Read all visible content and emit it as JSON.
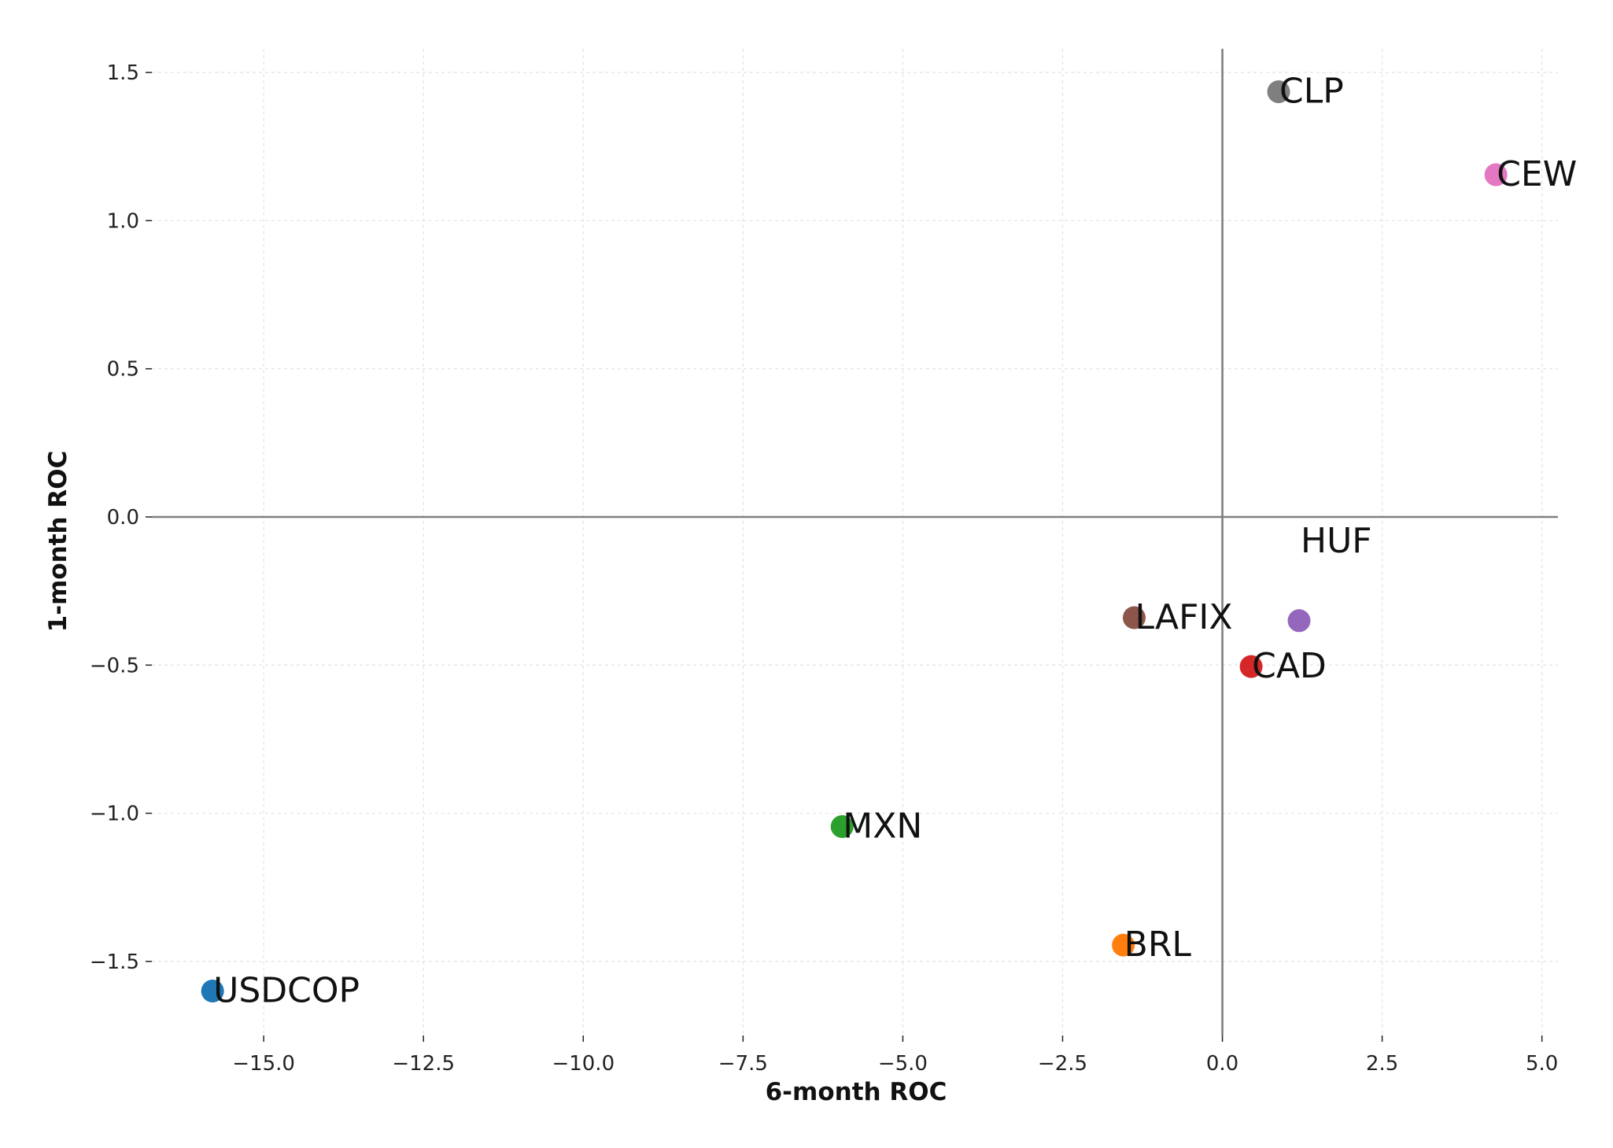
{
  "chart_data": {
    "type": "scatter",
    "xlabel": "6-month ROC",
    "ylabel": "1-month ROC",
    "xlim": [
      -16.75,
      5.25
    ],
    "ylim": [
      -1.75,
      1.58
    ],
    "xticks": [
      -15.0,
      -12.5,
      -10.0,
      -7.5,
      -5.0,
      -2.5,
      0.0,
      2.5,
      5.0
    ],
    "xtick_labels": [
      "−15.0",
      "−12.5",
      "−10.0",
      "−7.5",
      "−5.0",
      "−2.5",
      "0.0",
      "2.5",
      "5.0"
    ],
    "yticks": [
      1.5,
      1.0,
      0.5,
      0.0,
      -0.5,
      -1.0,
      -1.5
    ],
    "ytick_labels": [
      "1.5",
      "1.0",
      "0.5",
      "0.0",
      "−0.5",
      "−1.0",
      "−1.5"
    ],
    "grid": true,
    "reference_lines": {
      "x": 0,
      "y": 0
    },
    "points": [
      {
        "label": "USDCOP",
        "x": -15.8,
        "y": -1.6,
        "color": "#1f77b4"
      },
      {
        "label": "BRL",
        "x": -1.55,
        "y": -1.445,
        "color": "#ff7f0e"
      },
      {
        "label": "MXN",
        "x": -5.95,
        "y": -1.045,
        "color": "#2ca02c"
      },
      {
        "label": "CAD",
        "x": 0.45,
        "y": -0.505,
        "color": "#d62728"
      },
      {
        "label": "HUF",
        "x": 1.2,
        "y": -0.35,
        "color": "#9467bd",
        "label_detached": true,
        "label_x": 1.2,
        "label_y": -0.08
      },
      {
        "label": "LAFIX",
        "x": -1.38,
        "y": -0.34,
        "color": "#8c564b"
      },
      {
        "label": "CEW",
        "x": 4.28,
        "y": 1.155,
        "color": "#e377c2"
      },
      {
        "label": "CLP",
        "x": 0.88,
        "y": 1.435,
        "color": "#7f7f7f"
      }
    ]
  }
}
